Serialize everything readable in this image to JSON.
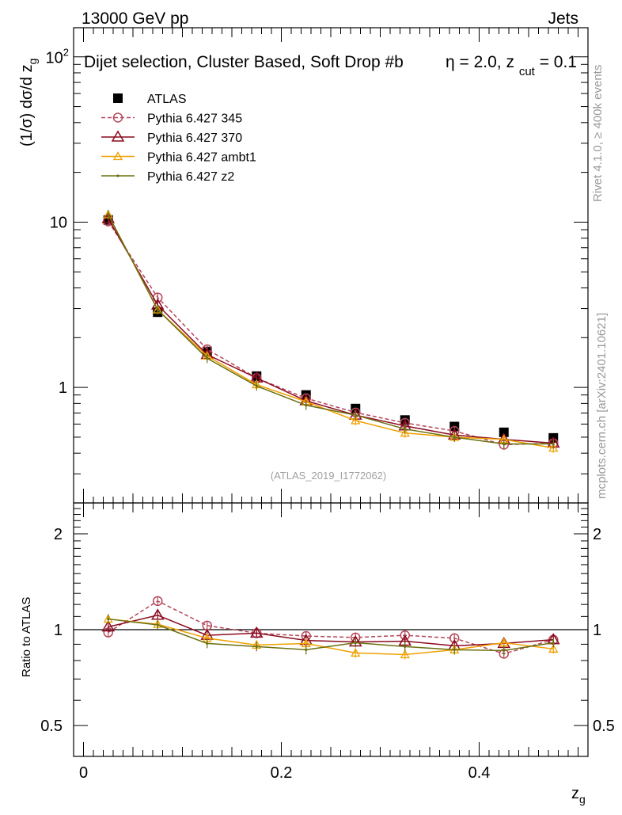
{
  "header": {
    "left_label": "13000 GeV pp",
    "right_label": "Jets",
    "plot_title": "Dijet selection, Cluster Based, Soft Drop #b",
    "title_param_1": "η = 2.0, z",
    "title_param_sub": "cut",
    "title_param_2": " = 0.1",
    "side_label_top": "Rivet 4.1.0, ≥ 400k events",
    "side_label_bottom": "mcplots.cern.ch [arXiv:2401.10621]",
    "watermark": "(ATLAS_2019_I1772062)"
  },
  "colors": {
    "data": "#000000",
    "p345": "#b5475a",
    "p370": "#8b0a1f",
    "ambt1": "#f0a000",
    "z2": "#6b7010"
  },
  "chart_data": [
    {
      "type": "scatter",
      "name": "main",
      "ylabel": "(1/σ) dσ/d z_g",
      "yscale": "log",
      "ylim": [
        0.2,
        150
      ],
      "xlim": [
        -0.01,
        0.51
      ],
      "ytick_labels": [
        "10²",
        "10",
        "1"
      ],
      "x": [
        0.025,
        0.075,
        0.125,
        0.175,
        0.225,
        0.275,
        0.325,
        0.375,
        0.425,
        0.475
      ],
      "series": [
        {
          "name": "ATLAS",
          "key": "data",
          "values": [
            10.3,
            2.85,
            1.65,
            1.17,
            0.9,
            0.745,
            0.635,
            0.58,
            0.535,
            0.495
          ]
        },
        {
          "name": "Pythia 6.427 345",
          "key": "p345",
          "values": [
            10.1,
            3.5,
            1.7,
            1.14,
            0.86,
            0.705,
            0.61,
            0.545,
            0.45,
            0.46
          ]
        },
        {
          "name": "Pythia 6.427 370",
          "key": "p370",
          "values": [
            10.5,
            3.15,
            1.58,
            1.14,
            0.83,
            0.68,
            0.585,
            0.515,
            0.485,
            0.46
          ]
        },
        {
          "name": "Pythia 6.427 ambt1",
          "key": "ambt1",
          "values": [
            11.1,
            2.95,
            1.55,
            1.04,
            0.82,
            0.63,
            0.53,
            0.5,
            0.485,
            0.43
          ]
        },
        {
          "name": "Pythia 6.427 z2",
          "key": "z2",
          "values": [
            11.1,
            2.95,
            1.5,
            1.02,
            0.78,
            0.68,
            0.56,
            0.5,
            0.455,
            0.455
          ]
        }
      ]
    },
    {
      "type": "scatter",
      "name": "ratio",
      "ylabel": "Ratio to ATLAS",
      "xlabel": "z_g",
      "yscale": "log",
      "ylim": [
        0.4,
        2.5
      ],
      "xlim": [
        -0.01,
        0.51
      ],
      "yticks": [
        0.5,
        1,
        2
      ],
      "ytick_labels": [
        "0.5",
        "1",
        "2"
      ],
      "xticks": [
        0,
        0.2,
        0.4
      ],
      "xtick_labels": [
        "0",
        "0.2",
        "0.4"
      ],
      "x": [
        0.025,
        0.075,
        0.125,
        0.175,
        0.225,
        0.275,
        0.325,
        0.375,
        0.425,
        0.475
      ],
      "series": [
        {
          "name": "Pythia 6.427 345",
          "key": "p345",
          "values": [
            0.98,
            1.23,
            1.03,
            0.975,
            0.955,
            0.945,
            0.96,
            0.94,
            0.84,
            0.93
          ]
        },
        {
          "name": "Pythia 6.427 370",
          "key": "p370",
          "values": [
            1.02,
            1.11,
            0.96,
            0.975,
            0.925,
            0.915,
            0.92,
            0.89,
            0.905,
            0.93
          ]
        },
        {
          "name": "Pythia 6.427 ambt1",
          "key": "ambt1",
          "values": [
            1.08,
            1.04,
            0.94,
            0.895,
            0.905,
            0.845,
            0.835,
            0.865,
            0.91,
            0.87
          ]
        },
        {
          "name": "Pythia 6.427 z2",
          "key": "z2",
          "values": [
            1.08,
            1.035,
            0.905,
            0.885,
            0.865,
            0.91,
            0.885,
            0.865,
            0.86,
            0.91
          ]
        }
      ]
    }
  ]
}
